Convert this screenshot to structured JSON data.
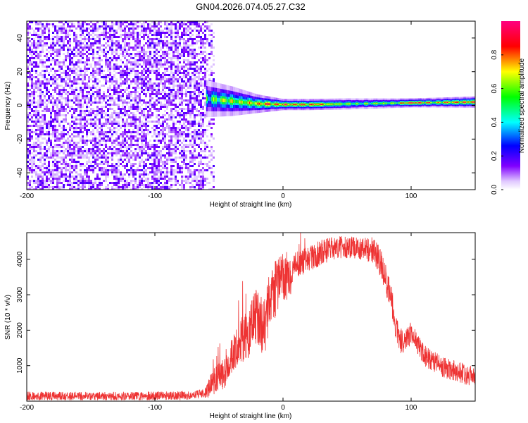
{
  "figure_title": "GN04.2026.074.05.27.C32",
  "chart_data": [
    {
      "type": "heatmap",
      "title": "",
      "xlabel": "Height of straight line (km)",
      "ylabel": "Frequency (Hz)",
      "xlim": [
        -200,
        150
      ],
      "ylim": [
        -50,
        50
      ],
      "x_ticks": [
        -200,
        -100,
        0,
        100
      ],
      "y_ticks": [
        -40,
        -20,
        0,
        20,
        40
      ],
      "grid": false,
      "noise_region": {
        "x_from": -200,
        "x_to": -57,
        "freq_from": -50,
        "freq_to": 50,
        "amplitude": "0.05-0.2"
      },
      "signal_band": {
        "x_from": -60,
        "x_to": 150,
        "center_freq": [
          [
            -60,
            4
          ],
          [
            -40,
            2.5
          ],
          [
            -20,
            1
          ],
          [
            0,
            0.5
          ],
          [
            20,
            0.5
          ],
          [
            60,
            1
          ],
          [
            100,
            1.5
          ],
          [
            150,
            2
          ]
        ],
        "half_width": [
          [
            -60,
            5
          ],
          [
            -40,
            4
          ],
          [
            -20,
            2.5
          ],
          [
            0,
            1.5
          ],
          [
            50,
            1.5
          ],
          [
            100,
            1.2
          ],
          [
            150,
            1.5
          ]
        ],
        "peak_amplitude": [
          [
            -60,
            0.55
          ],
          [
            -45,
            0.65
          ],
          [
            -30,
            0.7
          ],
          [
            -15,
            0.85
          ],
          [
            0,
            0.9
          ],
          [
            10,
            0.95
          ],
          [
            30,
            0.85
          ],
          [
            60,
            0.6
          ],
          [
            90,
            0.7
          ],
          [
            100,
            0.95
          ],
          [
            120,
            0.75
          ],
          [
            150,
            0.9
          ]
        ]
      },
      "colorbar": {
        "label": "Normalized spectral amplitude",
        "range": [
          0,
          1
        ],
        "ticks": [
          0.0,
          0.2,
          0.4,
          0.6,
          0.8
        ],
        "colormap": [
          "#ffffff",
          "#8000ff",
          "#0000ff",
          "#00ffff",
          "#00ff00",
          "#ffff00",
          "#ff0000",
          "#ff00ff"
        ]
      }
    },
    {
      "type": "line",
      "title": "",
      "xlabel": "Height of straight line (km)",
      "ylabel": "SNR (10 * v/v)",
      "xlim": [
        -200,
        150
      ],
      "ylim": [
        0,
        4750
      ],
      "x_ticks": [
        -200,
        -100,
        0,
        100
      ],
      "y_ticks": [
        1000,
        2000,
        3000,
        4000
      ],
      "grid": false,
      "color": "#ee3333",
      "series": [
        {
          "envelope": [
            [
              -200,
              150
            ],
            [
              -150,
              140
            ],
            [
              -100,
              150
            ],
            [
              -70,
              160
            ],
            [
              -60,
              250
            ],
            [
              -55,
              500
            ],
            [
              -50,
              700
            ],
            [
              -45,
              800
            ],
            [
              -40,
              1200
            ],
            [
              -35,
              1600
            ],
            [
              -30,
              1800
            ],
            [
              -25,
              2100
            ],
            [
              -20,
              2500
            ],
            [
              -15,
              2000
            ],
            [
              -10,
              2900
            ],
            [
              -5,
              3200
            ],
            [
              0,
              3500
            ],
            [
              5,
              3400
            ],
            [
              10,
              3800
            ],
            [
              20,
              4000
            ],
            [
              30,
              4200
            ],
            [
              40,
              4300
            ],
            [
              50,
              4350
            ],
            [
              60,
              4300
            ],
            [
              70,
              4250
            ],
            [
              75,
              4000
            ],
            [
              80,
              3500
            ],
            [
              85,
              2800
            ],
            [
              88,
              2000
            ],
            [
              92,
              1700
            ],
            [
              95,
              1600
            ],
            [
              100,
              1950
            ],
            [
              105,
              1600
            ],
            [
              110,
              1300
            ],
            [
              120,
              1050
            ],
            [
              130,
              900
            ],
            [
              140,
              800
            ],
            [
              150,
              700
            ]
          ],
          "noise": [
            [
              -200,
              120
            ],
            [
              -62,
              120
            ],
            [
              -55,
              350
            ],
            [
              -40,
              500
            ],
            [
              -25,
              800
            ],
            [
              -15,
              900
            ],
            [
              -5,
              800
            ],
            [
              10,
              400
            ],
            [
              60,
              300
            ],
            [
              80,
              450
            ],
            [
              100,
              300
            ],
            [
              150,
              300
            ]
          ]
        }
      ]
    }
  ]
}
